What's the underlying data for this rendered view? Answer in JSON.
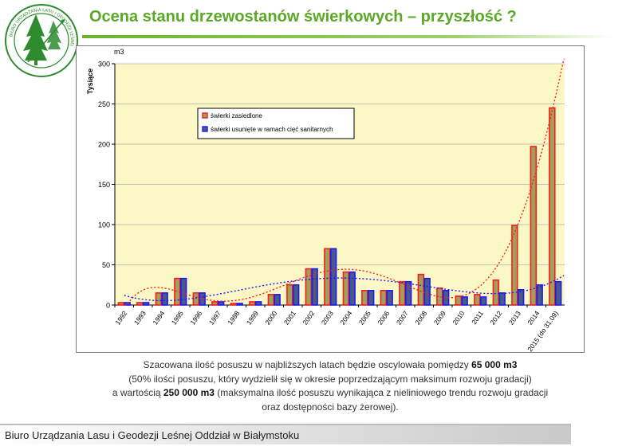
{
  "title": "Ocena stanu drzewostanów świerkowych – przyszłość ?",
  "logo": {
    "ring_text": "BIURO URZĄDZANIA LASU I GEODEZJI LEŚNEJ",
    "side_text": "ODDZIAŁ W BIAŁYMSTOKU",
    "icon": "spruce-tree-emblem",
    "color": "#2e8b2e"
  },
  "chart_data": {
    "type": "bar",
    "unit_label": "m3",
    "ylabel": "Tysiące",
    "ylim": [
      0,
      300
    ],
    "yticks": [
      0,
      50,
      100,
      150,
      200,
      250,
      300
    ],
    "plot_background": "#fbf8c6",
    "grid": true,
    "legend_position": "upper-left",
    "categories": [
      "1992",
      "1993",
      "1994",
      "1995",
      "1996",
      "1997",
      "1998",
      "1999",
      "2000",
      "2001",
      "2002",
      "2003",
      "2004",
      "2005",
      "2006",
      "2007",
      "2008",
      "2009",
      "2010",
      "2011",
      "2012",
      "2013",
      "2014",
      "2015 (do 31.09)"
    ],
    "series": [
      {
        "name": "świerki zasiedlone",
        "bar_fill": "#a0a05a",
        "edge_color": "#ff1a1a",
        "values": [
          3,
          3,
          15,
          33,
          15,
          4,
          2,
          4,
          13,
          25,
          45,
          70,
          41,
          18,
          18,
          29,
          38,
          21,
          11,
          13,
          31,
          99,
          197,
          245
        ]
      },
      {
        "name": "świerki usunięte w ramach cięć sanitarnych",
        "bar_fill": "#4a5a82",
        "edge_color": "#1a1aff",
        "values": [
          3,
          3,
          15,
          33,
          15,
          4,
          2,
          4,
          13,
          25,
          45,
          70,
          41,
          18,
          18,
          29,
          33,
          18,
          10,
          10,
          15,
          19,
          25,
          29
        ]
      }
    ],
    "trendlines": [
      {
        "series": "świerki zasiedlone",
        "style": "dotted",
        "color": "#ff1a1a"
      },
      {
        "series": "świerki usunięte w ramach cięć sanitarnych",
        "style": "dotted",
        "color": "#1a1aff"
      }
    ]
  },
  "caption": {
    "l1_a": "Szacowana ilość posuszu w najbliższych latach będzie oscylowała pomiędzy ",
    "l1_b": "65 000 m3",
    "l2": "(50% ilości posuszu, który wydzielił się w okresie poprzedzającym maksimum rozwoju gradacji)",
    "l3_a": "a wartością ",
    "l3_b": "250 000 m3",
    "l3_c": " (maksymalna ilość posuszu wynikająca z nieliniowego trendu rozwoju gradacji",
    "l4": "oraz dostępności bazy żerowej)."
  },
  "footer": "Biuro Urządzania Lasu i Geodezji Leśnej Oddział w Białymstoku"
}
